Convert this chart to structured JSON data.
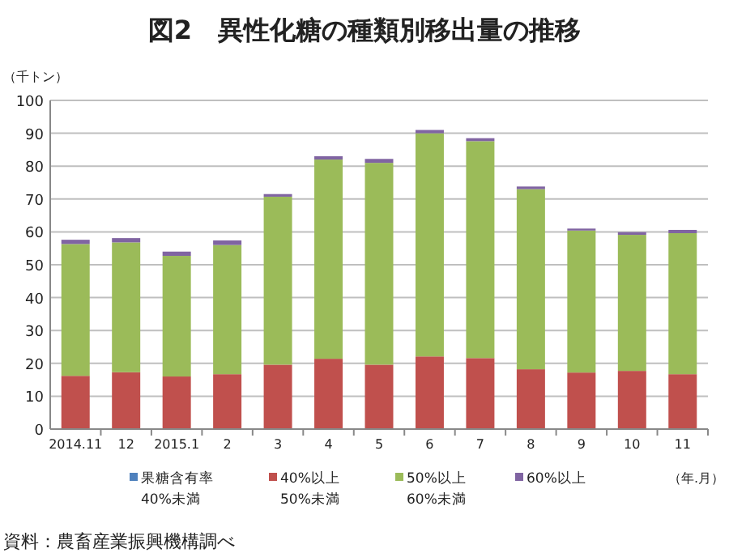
{
  "chart_data": {
    "type": "bar",
    "title": "図2　異性化糖の種類別移出量の推移",
    "ylabel": "（千トン）",
    "xlabel": "（年.月）",
    "annotations": [
      "資料：農畜産業振興機構調べ"
    ],
    "categories": [
      "2014.11",
      "12",
      "2015.1",
      "2",
      "3",
      "4",
      "5",
      "6",
      "7",
      "8",
      "9",
      "10",
      "11"
    ],
    "stacked": true,
    "ylim": [
      0,
      100
    ],
    "yticks": [
      0,
      10,
      20,
      30,
      40,
      50,
      60,
      70,
      80,
      90,
      100
    ],
    "grid": "y",
    "legend": "bottom",
    "series": [
      {
        "name": "果糖含有率\n40%未満",
        "color": "#4f81bd",
        "values": [
          0,
          0,
          0,
          0,
          0,
          0,
          0,
          0,
          0,
          0,
          0,
          0,
          0
        ]
      },
      {
        "name": "40%以上\n50%未満",
        "color": "#c0504d",
        "values": [
          16.2,
          17.3,
          16.0,
          16.7,
          19.6,
          21.4,
          19.6,
          22.1,
          21.6,
          18.2,
          17.2,
          17.7,
          16.7
        ]
      },
      {
        "name": "50%以上\n60%未満",
        "color": "#9bbb59",
        "values": [
          40.1,
          39.5,
          36.7,
          39.3,
          51.1,
          60.6,
          61.4,
          67.9,
          66.0,
          54.8,
          43.2,
          41.4,
          42.9
        ]
      },
      {
        "name": "60%以上",
        "color": "#8064a2",
        "values": [
          1.3,
          1.3,
          1.3,
          1.4,
          0.8,
          1.0,
          1.2,
          1.0,
          0.9,
          0.8,
          0.6,
          0.8,
          1.0
        ]
      }
    ]
  }
}
